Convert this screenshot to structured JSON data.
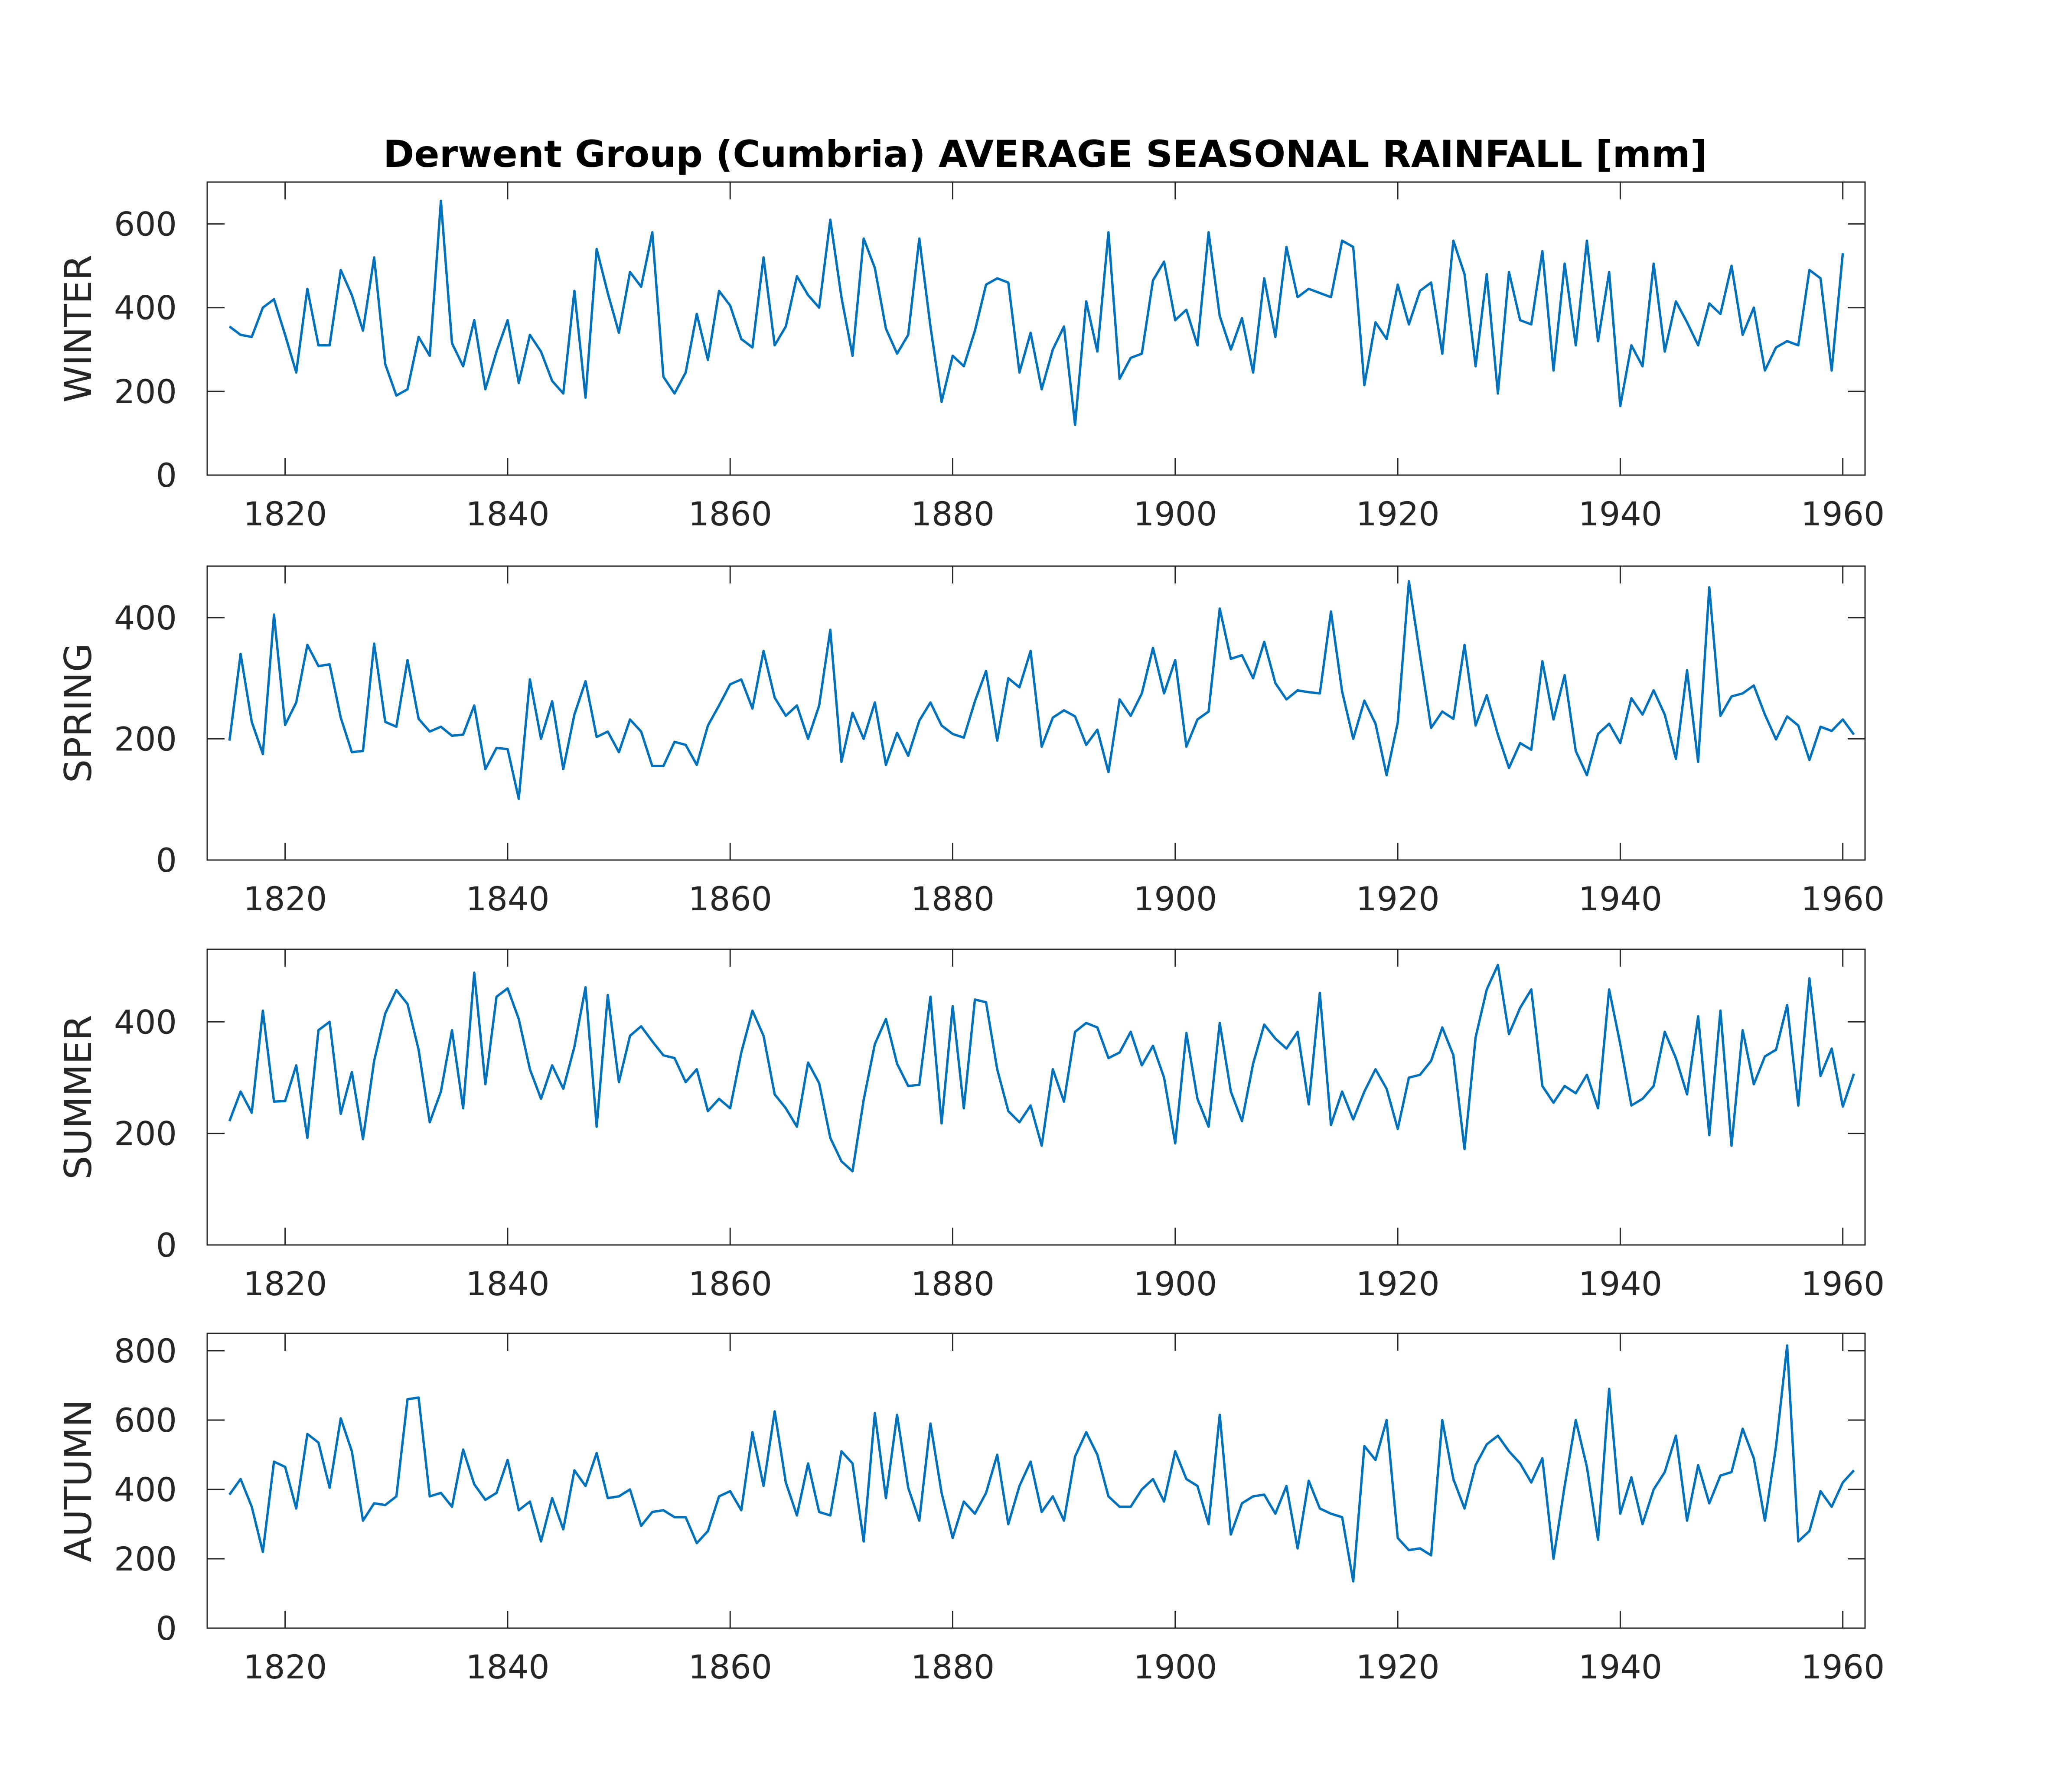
{
  "chart_data": {
    "type": "line",
    "title": "Derwent Group (Cumbria) AVERAGE SEASONAL RAINFALL [mm]",
    "x_start": 1815,
    "x_step": 1,
    "xlim": [
      1813,
      1962
    ],
    "xticks": [
      1820,
      1840,
      1860,
      1880,
      1900,
      1920,
      1940,
      1960
    ],
    "line_color": "#0072BD",
    "grid": false,
    "panels": [
      {
        "ylabel": "WINTER",
        "ylim": [
          0,
          700
        ],
        "yticks": [
          0,
          200,
          400,
          600
        ],
        "values": [
          355,
          335,
          330,
          400,
          420,
          335,
          245,
          445,
          310,
          310,
          490,
          430,
          345,
          520,
          265,
          190,
          205,
          330,
          285,
          655,
          315,
          260,
          370,
          205,
          295,
          370,
          220,
          335,
          295,
          225,
          195,
          440,
          185,
          540,
          435,
          340,
          485,
          450,
          580,
          235,
          195,
          245,
          385,
          275,
          440,
          405,
          325,
          305,
          520,
          310,
          355,
          475,
          430,
          400,
          610,
          425,
          285,
          565,
          495,
          350,
          290,
          335,
          565,
          355,
          175,
          285,
          260,
          345,
          455,
          470,
          460,
          245,
          340,
          205,
          300,
          355,
          120,
          415,
          295,
          580,
          230,
          280,
          290,
          465,
          510,
          370,
          395,
          310,
          580,
          380,
          300,
          375,
          245,
          470,
          330,
          545,
          425,
          445,
          435,
          425,
          560,
          545,
          215,
          365,
          325,
          455,
          360,
          440,
          460,
          290,
          560,
          480,
          260,
          480,
          195,
          485,
          370,
          360,
          535,
          250,
          505,
          310,
          560,
          320,
          485,
          165,
          310,
          260,
          505,
          295,
          415,
          365,
          310,
          410,
          385,
          500,
          335,
          400,
          250,
          305,
          320,
          310,
          490,
          470,
          250,
          530
        ]
      },
      {
        "ylabel": "SPRING",
        "ylim": [
          0,
          485
        ],
        "yticks": [
          0,
          200,
          400
        ],
        "values": [
          197,
          340,
          228,
          175,
          405,
          223,
          260,
          355,
          320,
          323,
          235,
          178,
          180,
          357,
          228,
          220,
          330,
          233,
          212,
          220,
          205,
          207,
          255,
          150,
          185,
          183,
          101,
          298,
          200,
          262,
          150,
          240,
          295,
          203,
          212,
          178,
          232,
          212,
          155,
          155,
          195,
          190,
          157,
          222,
          255,
          290,
          298,
          250,
          345,
          268,
          238,
          255,
          200,
          255,
          380,
          162,
          243,
          200,
          260,
          157,
          210,
          172,
          230,
          260,
          222,
          208,
          202,
          262,
          312,
          197,
          300,
          285,
          345,
          187,
          235,
          247,
          237,
          190,
          215,
          145,
          265,
          238,
          275,
          350,
          275,
          330,
          187,
          232,
          245,
          415,
          332,
          338,
          300,
          360,
          292,
          265,
          280,
          277,
          275,
          410,
          278,
          200,
          263,
          225,
          140,
          227,
          460,
          338,
          218,
          245,
          233,
          355,
          222,
          272,
          207,
          152,
          193,
          182,
          328,
          232,
          305,
          180,
          140,
          208,
          225,
          193,
          267,
          240,
          280,
          240,
          167,
          313,
          162,
          450,
          238,
          270,
          275,
          288,
          240,
          199,
          237,
          222,
          165,
          220,
          213,
          232,
          207
        ]
      },
      {
        "ylabel": "SUMMER",
        "ylim": [
          0,
          530
        ],
        "yticks": [
          0,
          200,
          400
        ],
        "values": [
          222,
          275,
          237,
          420,
          257,
          258,
          322,
          192,
          385,
          400,
          235,
          310,
          190,
          330,
          415,
          457,
          432,
          350,
          220,
          275,
          385,
          245,
          488,
          288,
          445,
          460,
          405,
          315,
          262,
          322,
          280,
          355,
          462,
          212,
          448,
          292,
          375,
          392,
          365,
          340,
          335,
          292,
          315,
          240,
          262,
          245,
          345,
          420,
          375,
          270,
          245,
          212,
          327,
          290,
          192,
          150,
          132,
          260,
          360,
          405,
          325,
          285,
          287,
          445,
          218,
          428,
          245,
          440,
          435,
          315,
          240,
          220,
          250,
          178,
          315,
          257,
          382,
          398,
          390,
          335,
          345,
          382,
          322,
          357,
          300,
          182,
          380,
          262,
          212,
          398,
          275,
          222,
          325,
          395,
          370,
          352,
          382,
          252,
          452,
          215,
          275,
          225,
          275,
          315,
          280,
          208,
          300,
          305,
          330,
          390,
          340,
          172,
          372,
          458,
          502,
          378,
          425,
          458,
          285,
          255,
          285,
          272,
          305,
          245,
          458,
          360,
          250,
          262,
          285,
          382,
          335,
          270,
          410,
          197,
          420,
          178,
          385,
          288,
          338,
          350,
          430,
          250,
          478,
          303,
          352,
          248,
          307
        ]
      },
      {
        "ylabel": "AUTUMN",
        "ylim": [
          0,
          850
        ],
        "yticks": [
          0,
          200,
          400,
          600,
          800
        ],
        "values": [
          385,
          430,
          350,
          220,
          480,
          465,
          345,
          560,
          535,
          405,
          605,
          510,
          310,
          360,
          355,
          380,
          660,
          665,
          380,
          390,
          350,
          515,
          415,
          370,
          390,
          485,
          340,
          365,
          250,
          375,
          285,
          455,
          410,
          505,
          375,
          380,
          400,
          295,
          335,
          340,
          320,
          320,
          245,
          280,
          380,
          395,
          340,
          565,
          410,
          625,
          420,
          325,
          475,
          335,
          325,
          510,
          475,
          250,
          620,
          375,
          615,
          405,
          310,
          590,
          390,
          260,
          365,
          330,
          390,
          500,
          300,
          410,
          480,
          335,
          380,
          310,
          495,
          565,
          500,
          380,
          350,
          350,
          400,
          430,
          365,
          510,
          430,
          410,
          300,
          615,
          270,
          360,
          380,
          385,
          330,
          410,
          230,
          425,
          345,
          330,
          320,
          135,
          525,
          485,
          600,
          260,
          225,
          230,
          210,
          600,
          430,
          345,
          470,
          530,
          555,
          510,
          475,
          420,
          490,
          200,
          410,
          600,
          465,
          255,
          690,
          330,
          435,
          300,
          400,
          450,
          555,
          310,
          470,
          360,
          440,
          450,
          575,
          490,
          310,
          525,
          815,
          250,
          280,
          395,
          350,
          420,
          455
        ]
      }
    ]
  }
}
